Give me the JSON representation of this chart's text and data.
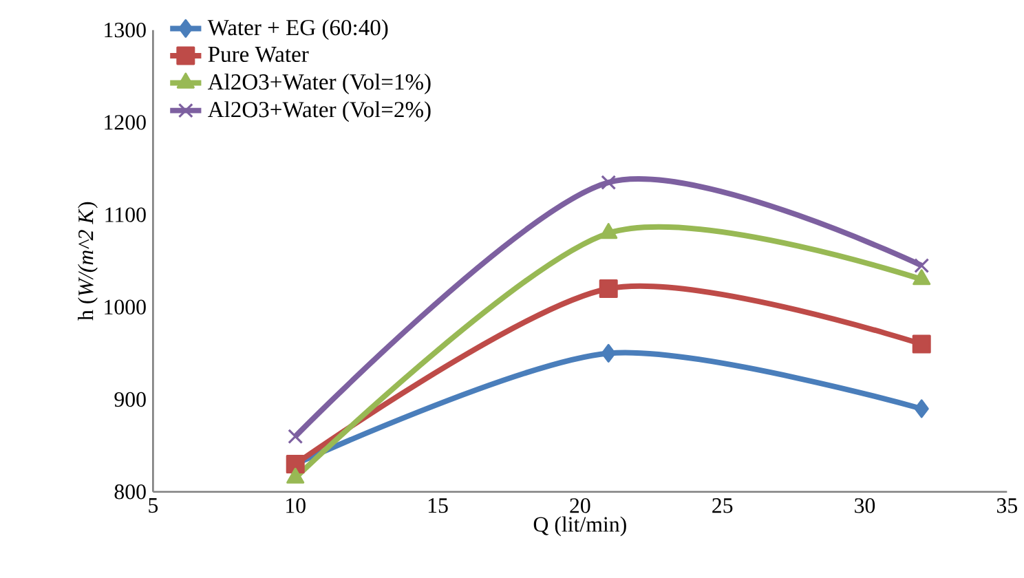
{
  "chart_data": {
    "type": "line",
    "xlabel": "Q (lit/min)",
    "ylabel": "h (*W/(m^2 K*)",
    "x": [
      10,
      21,
      32
    ],
    "xlim": [
      5,
      35
    ],
    "xticks": [
      5,
      10,
      15,
      20,
      25,
      30,
      35
    ],
    "ylim": [
      800,
      1300
    ],
    "yticks": [
      800,
      900,
      1000,
      1100,
      1200,
      1300
    ],
    "grid": false,
    "legend": "top left",
    "line_style": "solid",
    "series": [
      {
        "name": "Water + EG (60:40)",
        "color": "#4a7ebb",
        "marker": "diamond",
        "values": [
          830,
          950,
          890
        ]
      },
      {
        "name": "Pure Water",
        "color": "#be4b48",
        "marker": "square",
        "values": [
          830,
          1020,
          960
        ]
      },
      {
        "name": "Al2O3+Water (Vol=1%)",
        "color": "#98b954",
        "marker": "triangle",
        "values": [
          815,
          1080,
          1030
        ]
      },
      {
        "name": "Al2O3+Water (Vol=2%)",
        "color": "#7d60a0",
        "marker": "cross",
        "values": [
          860,
          1135,
          1045
        ]
      }
    ]
  }
}
